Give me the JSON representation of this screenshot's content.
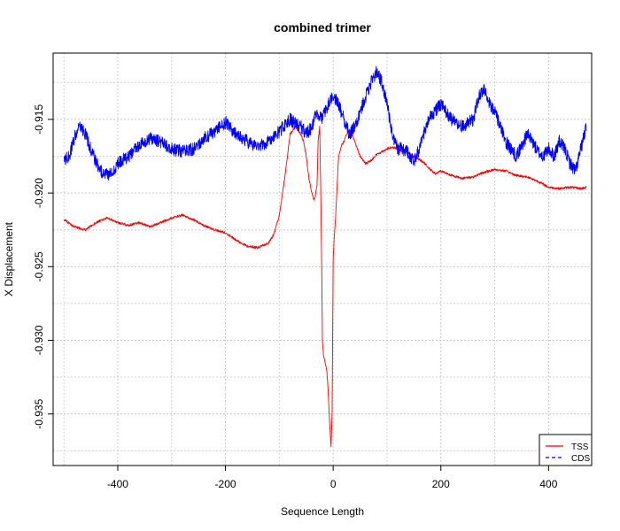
{
  "chart_data": {
    "type": "line",
    "title": "combined trimer",
    "xlabel": "Sequence Length",
    "ylabel": "X Displacement",
    "xlim": [
      -520,
      480
    ],
    "ylim": [
      -0.9385,
      -0.9105
    ],
    "grid": true,
    "x_ticks": [
      -400,
      -200,
      0,
      200,
      400
    ],
    "x_tick_labels": [
      "-400",
      "-200",
      "0",
      "200",
      "400"
    ],
    "y_ticks": [
      -0.935,
      -0.93,
      -0.925,
      -0.92,
      -0.915
    ],
    "y_tick_labels": [
      "-0.935",
      "-0.930",
      "-0.925",
      "-0.920",
      "-0.915"
    ],
    "legend_position": "bottom-right",
    "series": [
      {
        "name": "TSS",
        "color": "#ff0000",
        "line_style": "solid",
        "noise": 8e-05,
        "x": [
          -500,
          -480,
          -460,
          -440,
          -420,
          -400,
          -380,
          -360,
          -340,
          -320,
          -300,
          -280,
          -260,
          -240,
          -220,
          -200,
          -180,
          -160,
          -140,
          -120,
          -110,
          -100,
          -90,
          -80,
          -70,
          -60,
          -55,
          -50,
          -45,
          -40,
          -35,
          -30,
          -28,
          -25,
          -23,
          -21,
          -20,
          -18,
          -15,
          -12,
          -10,
          -8,
          -6,
          -4,
          -2,
          0,
          2,
          4,
          6,
          8,
          10,
          15,
          20,
          25,
          30,
          35,
          40,
          45,
          50,
          60,
          70,
          80,
          90,
          100,
          110,
          120,
          130,
          140,
          150,
          160,
          170,
          180,
          190,
          200,
          220,
          240,
          260,
          280,
          300,
          320,
          340,
          360,
          380,
          400,
          420,
          440,
          460,
          470
        ],
        "y": [
          -0.9218,
          -0.9223,
          -0.9225,
          -0.922,
          -0.9217,
          -0.922,
          -0.9222,
          -0.922,
          -0.9223,
          -0.922,
          -0.9217,
          -0.9215,
          -0.9218,
          -0.9222,
          -0.9225,
          -0.9227,
          -0.9232,
          -0.9236,
          -0.9237,
          -0.9234,
          -0.9228,
          -0.9215,
          -0.919,
          -0.916,
          -0.9155,
          -0.916,
          -0.9165,
          -0.9175,
          -0.919,
          -0.92,
          -0.9205,
          -0.9195,
          -0.9165,
          -0.9155,
          -0.92,
          -0.926,
          -0.93,
          -0.931,
          -0.9315,
          -0.932,
          -0.933,
          -0.9345,
          -0.936,
          -0.9372,
          -0.935,
          -0.9245,
          -0.923,
          -0.922,
          -0.9205,
          -0.919,
          -0.9175,
          -0.9168,
          -0.9165,
          -0.916,
          -0.9158,
          -0.916,
          -0.9165,
          -0.917,
          -0.9175,
          -0.918,
          -0.9178,
          -0.9174,
          -0.9172,
          -0.917,
          -0.9169,
          -0.917,
          -0.9172,
          -0.9173,
          -0.9175,
          -0.9177,
          -0.918,
          -0.9184,
          -0.9187,
          -0.9185,
          -0.9188,
          -0.919,
          -0.9189,
          -0.9186,
          -0.9184,
          -0.9185,
          -0.9188,
          -0.9189,
          -0.9192,
          -0.9196,
          -0.9197,
          -0.9196,
          -0.9197,
          -0.9196
        ]
      },
      {
        "name": "CDS",
        "color": "#0000ff",
        "line_style": "dashed",
        "noise": 0.00045,
        "x": [
          -500,
          -490,
          -480,
          -470,
          -460,
          -450,
          -440,
          -430,
          -420,
          -410,
          -400,
          -380,
          -360,
          -340,
          -320,
          -300,
          -280,
          -260,
          -240,
          -220,
          -200,
          -180,
          -160,
          -140,
          -120,
          -100,
          -80,
          -60,
          -50,
          -40,
          -30,
          -20,
          -10,
          0,
          10,
          20,
          30,
          40,
          50,
          60,
          70,
          80,
          85,
          90,
          100,
          110,
          120,
          130,
          140,
          150,
          160,
          170,
          180,
          200,
          220,
          240,
          260,
          270,
          280,
          290,
          300,
          310,
          320,
          340,
          350,
          360,
          370,
          380,
          390,
          400,
          410,
          420,
          430,
          440,
          450,
          460,
          470
        ],
        "y": [
          -0.9178,
          -0.9175,
          -0.9162,
          -0.9155,
          -0.916,
          -0.917,
          -0.918,
          -0.9185,
          -0.9188,
          -0.9185,
          -0.918,
          -0.9175,
          -0.9168,
          -0.9163,
          -0.9165,
          -0.917,
          -0.9172,
          -0.917,
          -0.9163,
          -0.9158,
          -0.9152,
          -0.916,
          -0.9165,
          -0.9168,
          -0.9165,
          -0.9158,
          -0.915,
          -0.9155,
          -0.916,
          -0.9155,
          -0.9145,
          -0.915,
          -0.914,
          -0.9133,
          -0.914,
          -0.915,
          -0.916,
          -0.9155,
          -0.9145,
          -0.9135,
          -0.9125,
          -0.9118,
          -0.912,
          -0.9125,
          -0.914,
          -0.916,
          -0.917,
          -0.917,
          -0.9173,
          -0.9178,
          -0.917,
          -0.9158,
          -0.9148,
          -0.914,
          -0.915,
          -0.9155,
          -0.915,
          -0.9135,
          -0.913,
          -0.9138,
          -0.9145,
          -0.9155,
          -0.9165,
          -0.9175,
          -0.9168,
          -0.916,
          -0.9165,
          -0.9172,
          -0.9175,
          -0.917,
          -0.9175,
          -0.9165,
          -0.917,
          -0.918,
          -0.9185,
          -0.917,
          -0.9155
        ]
      }
    ]
  }
}
